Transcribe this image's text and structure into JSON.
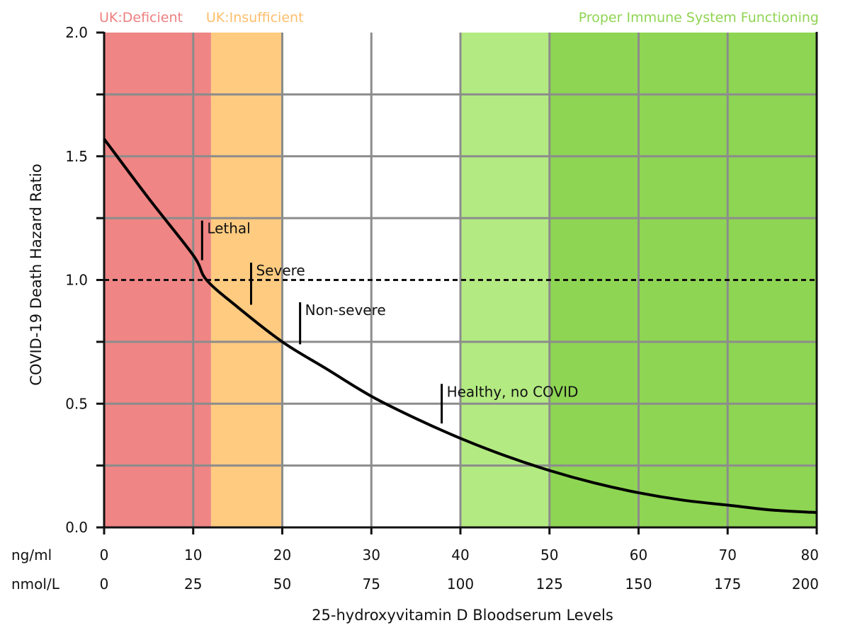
{
  "chart_data": {
    "type": "line",
    "title": "",
    "xlabel": "25-hydroxyvitamin D Bloodserum Levels",
    "ylabel": "COVID-19 Death Hazard Ratio",
    "xlim": [
      0,
      80
    ],
    "ylim": [
      0,
      2.0
    ],
    "x_unit_primary": "ng/ml",
    "x_unit_secondary": "nmol/L",
    "x_ticks_primary": [
      "0",
      "10",
      "20",
      "30",
      "40",
      "50",
      "60",
      "70",
      "80"
    ],
    "x_ticks_secondary": [
      "0",
      "25",
      "50",
      "75",
      "100",
      "125",
      "150",
      "175",
      "200"
    ],
    "y_ticks": [
      "0.0",
      "0.5",
      "1.0",
      "1.5",
      "2.0"
    ],
    "y_tick_values": [
      0,
      0.5,
      1.0,
      1.5,
      2.0
    ],
    "grid": true,
    "reference_line": {
      "y": 1.0,
      "style": "dashed"
    },
    "series": [
      {
        "name": "COVID-19 Death Hazard Ratio",
        "x": [
          0,
          5,
          10,
          11.5,
          15,
          20,
          25,
          30,
          35,
          40,
          45,
          50,
          55,
          60,
          65,
          70,
          75,
          80
        ],
        "y": [
          1.57,
          1.33,
          1.1,
          1.0,
          0.89,
          0.75,
          0.64,
          0.53,
          0.44,
          0.36,
          0.29,
          0.23,
          0.18,
          0.14,
          0.11,
          0.09,
          0.07,
          0.06
        ]
      }
    ],
    "zones": [
      {
        "label": "UK:Deficient",
        "x0": 0,
        "x1": 12,
        "color": "#ef8585",
        "label_color": "#ef7f7f"
      },
      {
        "label": "UK:Insufficient",
        "x0": 12,
        "x1": 20,
        "color": "#fecb80",
        "label_color": "#fdbe6c"
      },
      {
        "label": "",
        "x0": 20,
        "x1": 40,
        "color": "#ffffff",
        "label_color": "#ffffff"
      },
      {
        "label": "Proper Immune System Functioning",
        "x0": 40,
        "x1": 80,
        "color": "#b3ea82",
        "label_color": "#8fd452"
      },
      {
        "label": "",
        "x0": 50,
        "x1": 80,
        "color": "#8ed553",
        "label_color": "#8ed553"
      }
    ],
    "annotations": [
      {
        "label": "Lethal",
        "x": 11,
        "y_low": 1.08,
        "y_high": 1.24
      },
      {
        "label": "Severe",
        "x": 16.5,
        "y_low": 0.9,
        "y_high": 1.07
      },
      {
        "label": "Non-severe",
        "x": 22,
        "y_low": 0.74,
        "y_high": 0.91
      },
      {
        "label": "Healthy, no COVID",
        "x": 37.9,
        "y_low": 0.42,
        "y_high": 0.58
      }
    ]
  }
}
